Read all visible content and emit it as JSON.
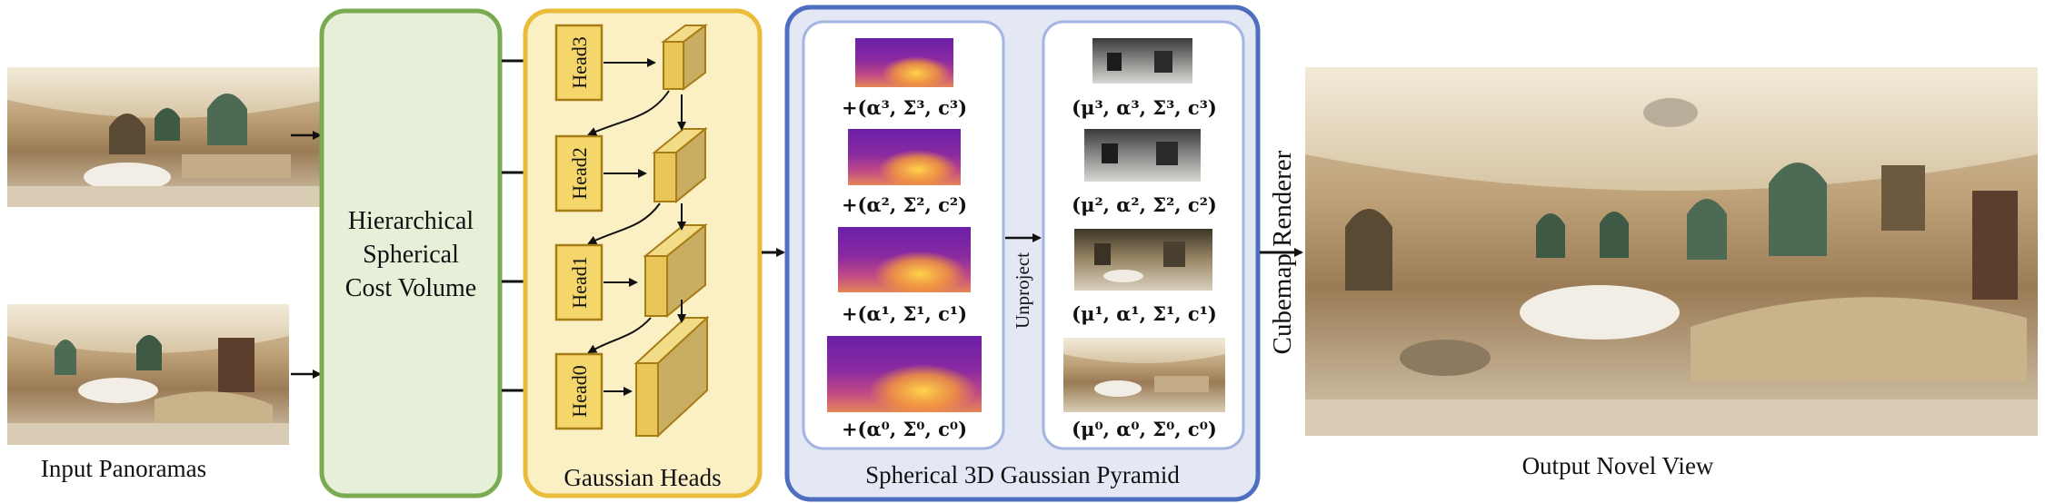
{
  "input": {
    "label": "Input Panoramas"
  },
  "cost_volume": {
    "line1": "Hierarchical",
    "line2": "Spherical",
    "line3": "Cost Volume"
  },
  "heads": {
    "label": "Gaussian Heads",
    "items": [
      "Head3",
      "Head2",
      "Head1",
      "Head0"
    ]
  },
  "pyramid": {
    "label": "Spherical 3D Gaussian Pyramid",
    "unproject": "Unproject",
    "left_labels": [
      "+(α³, Σ³, c³)",
      "+(α², Σ², c²)",
      "+(α¹, Σ¹, c¹)",
      "+(α⁰, Σ⁰, c⁰)"
    ],
    "right_labels": [
      "(μ³, α³, Σ³, c³)",
      "(μ², α², Σ², c²)",
      "(μ¹, α¹, Σ¹, c¹)",
      "(μ⁰, α⁰, Σ⁰, c⁰)"
    ]
  },
  "renderer": {
    "label": "Cubemap Renderer"
  },
  "output": {
    "label": "Output Novel View"
  },
  "colors": {
    "green_fill": "#e6f0d9",
    "green_stroke": "#7aab50",
    "yellow_fill": "#fbf0c4",
    "yellow_stroke": "#e9bd3a",
    "blue_fill": "#e4e8f5",
    "blue_stroke": "#4e6fbf",
    "blue_inner": "#a3b5e0"
  }
}
